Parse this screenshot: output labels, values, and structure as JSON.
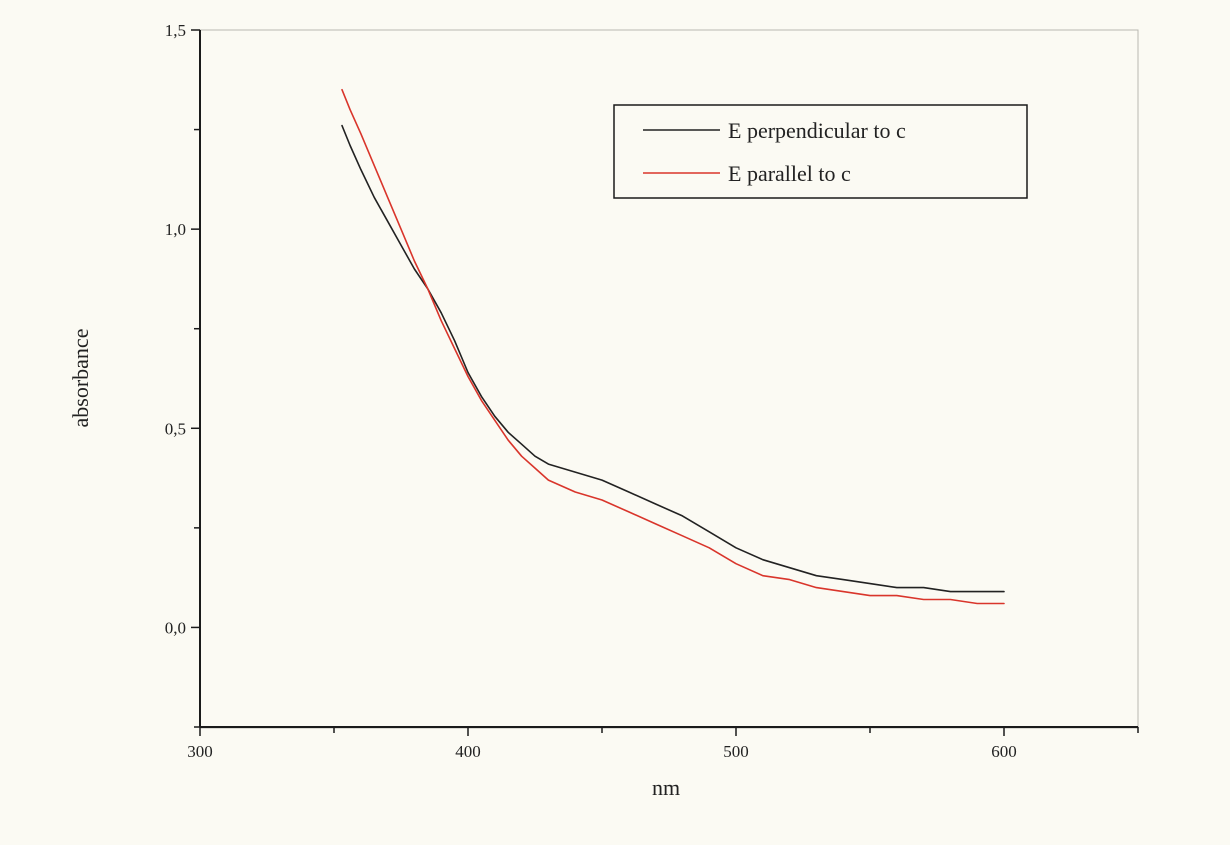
{
  "chart_data": {
    "type": "line",
    "xlabel": "nm",
    "ylabel": "absorbance",
    "xlim": [
      300,
      650
    ],
    "ylim": [
      -0.25,
      1.5
    ],
    "x_ticks": [
      300,
      400,
      500,
      600
    ],
    "x_tick_labels": [
      "300",
      "400",
      "500",
      "600"
    ],
    "x_minor_ticks": [
      350,
      450,
      550,
      650
    ],
    "y_ticks": [
      0.0,
      0.5,
      1.0,
      1.5
    ],
    "y_tick_labels": [
      "0,0",
      "0,5",
      "1,0",
      "1,5"
    ],
    "y_minor_ticks": [
      -0.25,
      0.25,
      0.75,
      1.25
    ],
    "grid": false,
    "legend_position": "top-right",
    "series": [
      {
        "name": "E perpendicular to c",
        "color": "#222222",
        "x": [
          353,
          356,
          360,
          365,
          370,
          375,
          380,
          385,
          390,
          395,
          400,
          405,
          410,
          415,
          420,
          425,
          430,
          440,
          450,
          460,
          470,
          480,
          490,
          500,
          510,
          520,
          530,
          540,
          550,
          560,
          570,
          580,
          590,
          600
        ],
        "y": [
          1.26,
          1.21,
          1.15,
          1.08,
          1.02,
          0.96,
          0.9,
          0.85,
          0.79,
          0.72,
          0.64,
          0.58,
          0.53,
          0.49,
          0.46,
          0.43,
          0.41,
          0.39,
          0.37,
          0.34,
          0.31,
          0.28,
          0.24,
          0.2,
          0.17,
          0.15,
          0.13,
          0.12,
          0.11,
          0.1,
          0.1,
          0.09,
          0.09,
          0.09
        ]
      },
      {
        "name": "E parallel to c",
        "color": "#d9352b",
        "x": [
          353,
          356,
          360,
          365,
          370,
          375,
          380,
          385,
          390,
          395,
          400,
          405,
          410,
          415,
          420,
          425,
          430,
          440,
          450,
          460,
          470,
          480,
          490,
          500,
          510,
          520,
          530,
          540,
          550,
          560,
          570,
          580,
          590,
          600
        ],
        "y": [
          1.35,
          1.3,
          1.24,
          1.16,
          1.08,
          1.0,
          0.92,
          0.85,
          0.77,
          0.7,
          0.63,
          0.57,
          0.52,
          0.47,
          0.43,
          0.4,
          0.37,
          0.34,
          0.32,
          0.29,
          0.26,
          0.23,
          0.2,
          0.16,
          0.13,
          0.12,
          0.1,
          0.09,
          0.08,
          0.08,
          0.07,
          0.07,
          0.06,
          0.06
        ]
      }
    ]
  }
}
